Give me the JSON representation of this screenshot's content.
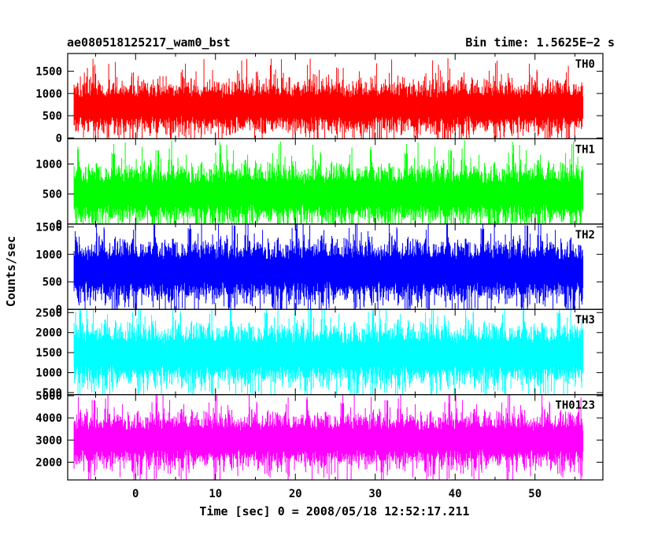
{
  "header": {
    "title_left": "ae080518125217_wam0_bst",
    "title_right": "Bin time: 1.5625E−2 s"
  },
  "chart_data": {
    "type": "line",
    "xlabel": "Time [sec] 0 = 2008/05/18 12:52:17.211",
    "ylabel": "Counts/sec",
    "xlim": [
      -8.5,
      58.5
    ],
    "x_ticks": [
      0,
      10,
      20,
      30,
      40,
      50
    ],
    "x_tick_labels": [
      "0",
      "10",
      "20",
      "30",
      "40",
      "50"
    ],
    "x_data_range": [
      -7.7,
      56
    ],
    "bin_time": 0.015625,
    "grid": false,
    "legend": "none",
    "panels": [
      {
        "name": "TH0",
        "color": "#ff0000",
        "ylim": [
          -20,
          1900
        ],
        "yticks": [
          0,
          500,
          1000,
          1500
        ],
        "ytick_labels": [
          "0",
          "500",
          "1000",
          "1500"
        ],
        "mean": 700,
        "typical_range": [
          150,
          1300
        ],
        "peak_range": [
          0,
          1900
        ]
      },
      {
        "name": "TH1",
        "color": "#00ff00",
        "ylim": [
          0,
          1420
        ],
        "yticks": [
          0,
          500,
          1000
        ],
        "ytick_labels": [
          "0",
          "500",
          "1000"
        ],
        "mean": 500,
        "typical_range": [
          80,
          1050
        ],
        "peak_range": [
          0,
          1400
        ]
      },
      {
        "name": "TH2",
        "color": "#0000ff",
        "ylim": [
          0,
          1550
        ],
        "yticks": [
          0,
          500,
          1000,
          1500
        ],
        "ytick_labels": [
          "0",
          "500",
          "1000",
          "1500"
        ],
        "mean": 700,
        "typical_range": [
          200,
          1300
        ],
        "peak_range": [
          0,
          1550
        ]
      },
      {
        "name": "TH3",
        "color": "#00ffff",
        "ylim": [
          450,
          2580
        ],
        "yticks": [
          500,
          1000,
          1500,
          2000,
          2500
        ],
        "ytick_labels": [
          "500",
          "1000",
          "1500",
          "2000",
          "2500"
        ],
        "mean": 1450,
        "typical_range": [
          700,
          2200
        ],
        "peak_range": [
          500,
          2600
        ]
      },
      {
        "name": "TH0123",
        "color": "#ff00ff",
        "ylim": [
          1200,
          5050
        ],
        "yticks": [
          2000,
          3000,
          4000,
          5000
        ],
        "ytick_labels": [
          "2000",
          "3000",
          "4000",
          "5000"
        ],
        "mean": 3000,
        "typical_range": [
          1900,
          4300
        ],
        "peak_range": [
          1200,
          5000
        ]
      }
    ]
  }
}
